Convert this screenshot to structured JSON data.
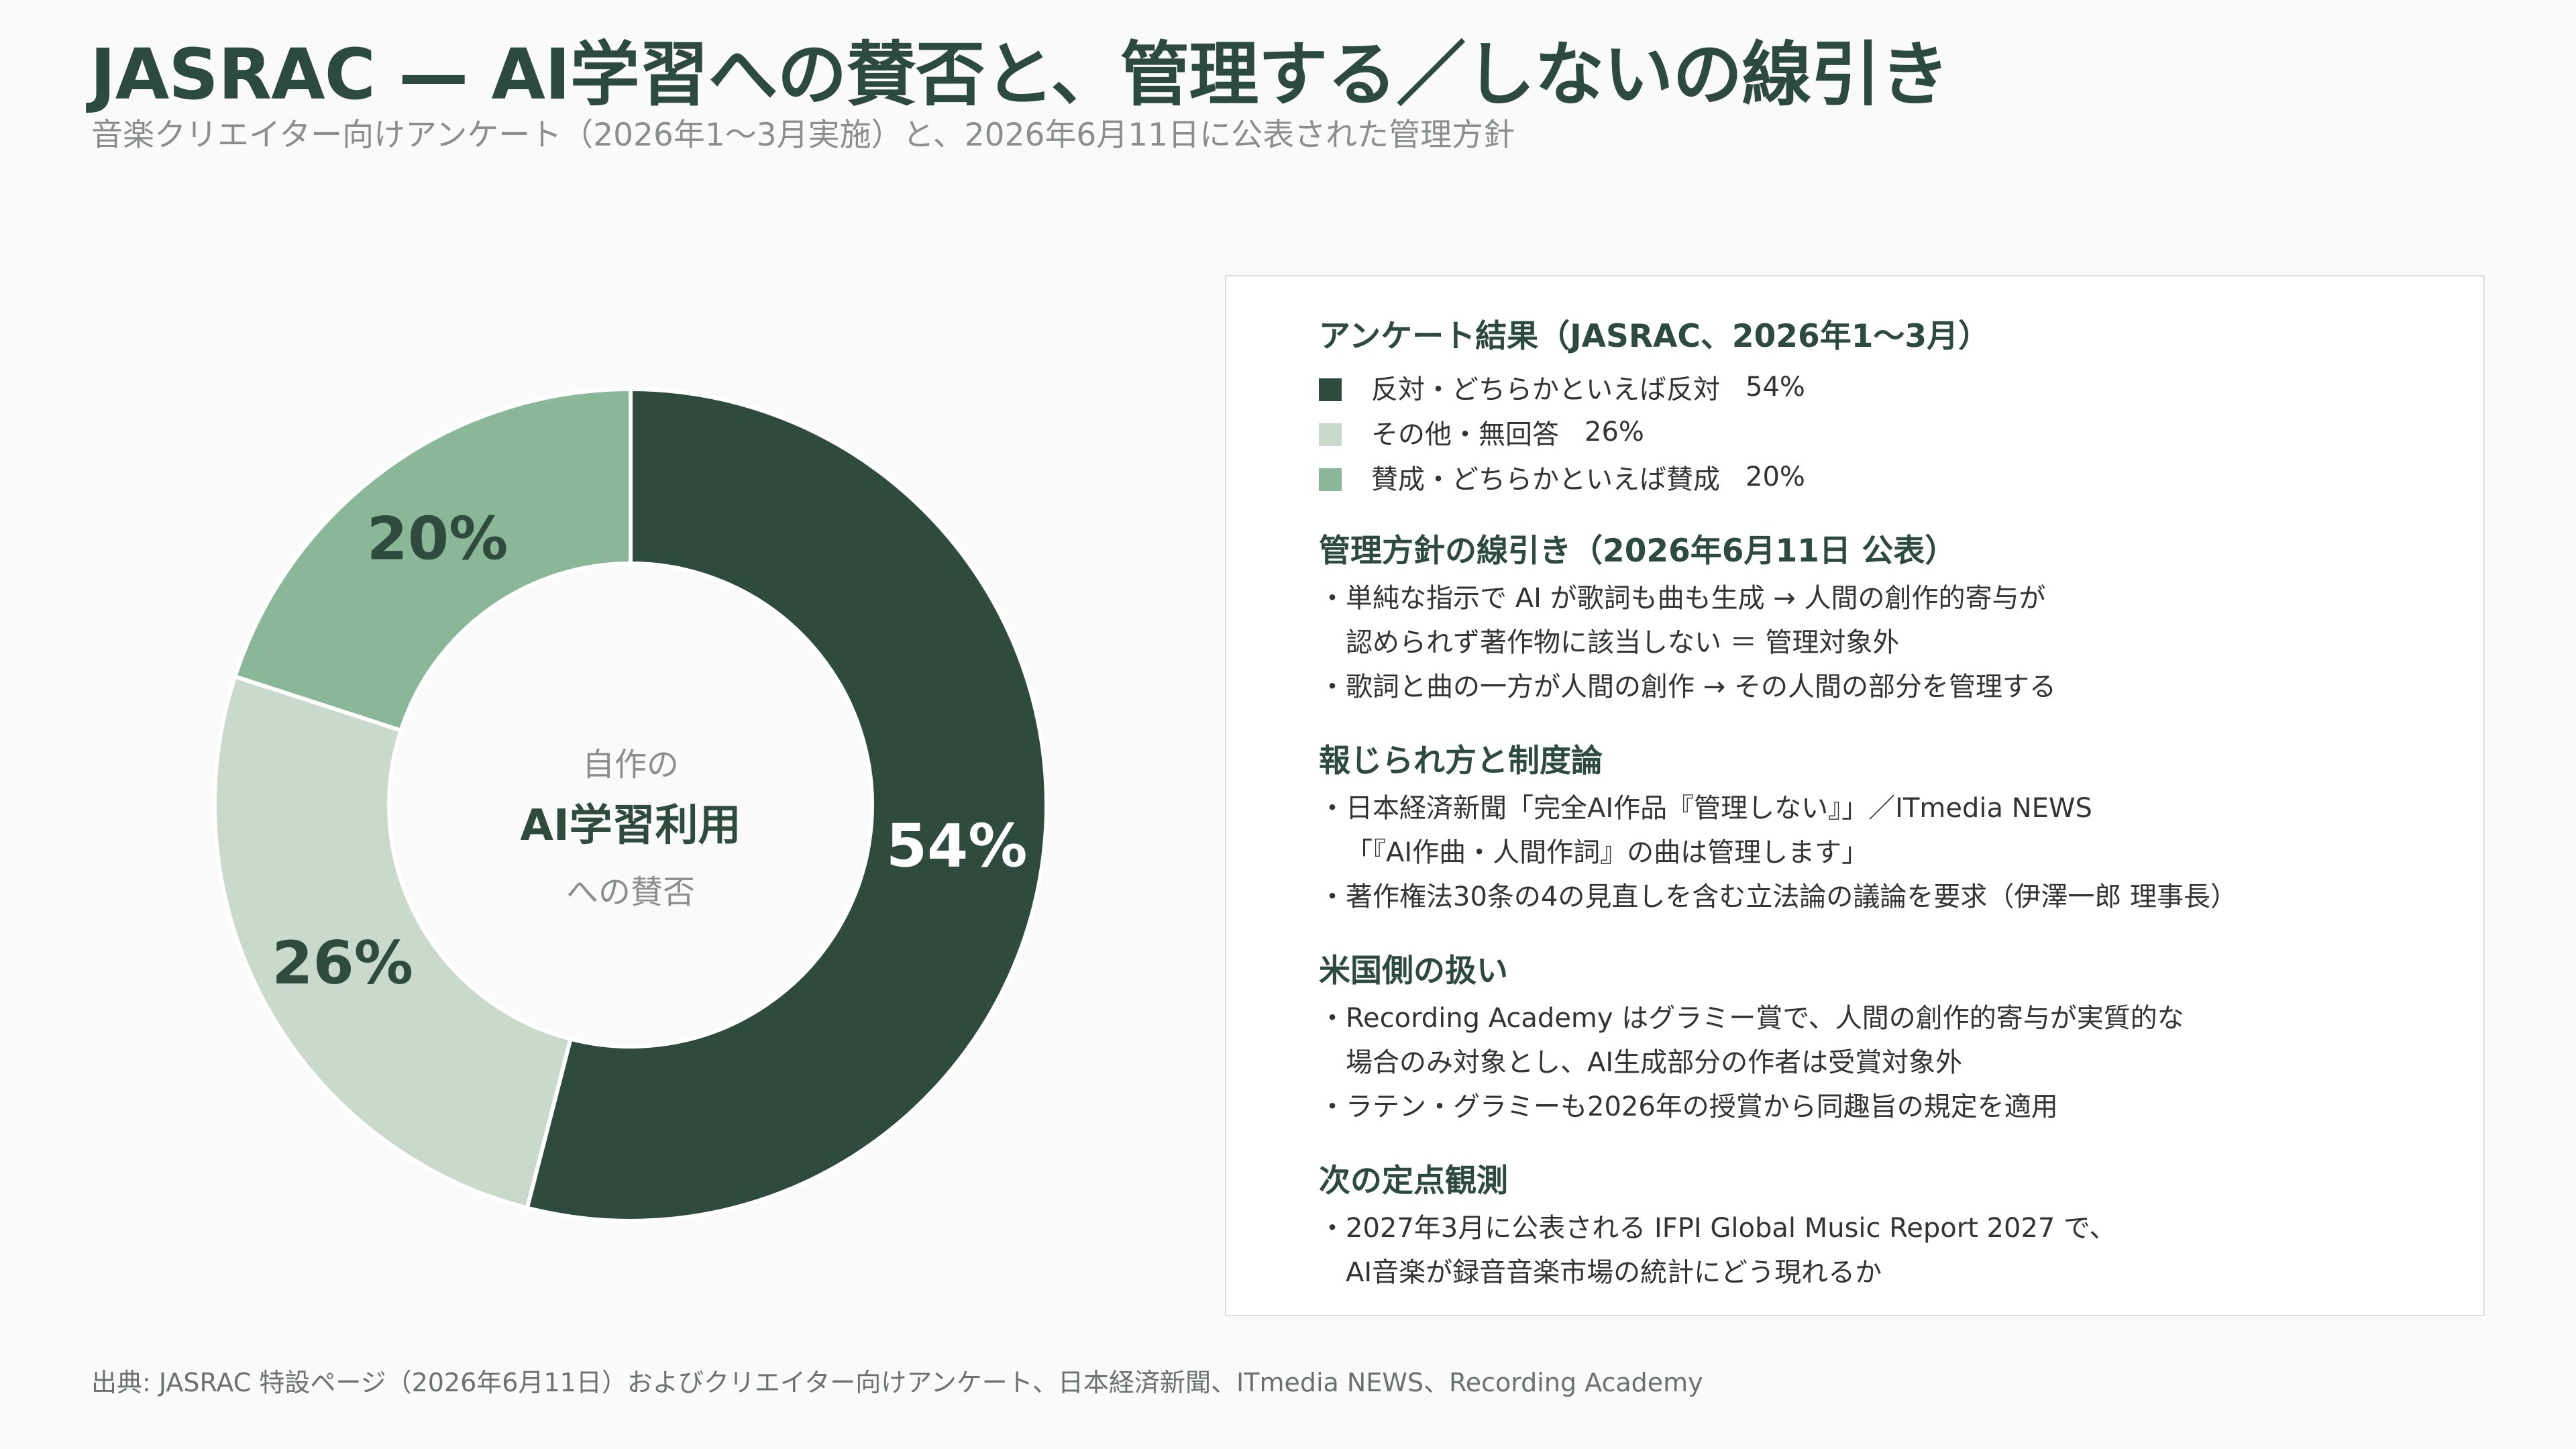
{
  "header": {
    "title": "JASRAC — AI学習への賛否と、管理する／しないの線引き",
    "subtitle": "音楽クリエイター向けアンケート（2026年1〜3月実施）と、2026年6月11日に公表された管理方針"
  },
  "chart_data": {
    "type": "pie",
    "donut": true,
    "center_label": [
      "自作の",
      "AI学習利用",
      "への賛否"
    ],
    "categories": [
      "反対・どちらかといえば反対",
      "その他・無回答",
      "賛成・どちらかといえば賛成"
    ],
    "values": [
      54,
      26,
      20
    ],
    "data_labels": [
      "54%",
      "26%",
      "20%"
    ],
    "colors": [
      "#2e4b3e",
      "#c9dacd",
      "#8ab797"
    ],
    "label_colors": [
      "#ffffff",
      "#2e4b3e",
      "#2e4b3e"
    ]
  },
  "panel": {
    "survey_title": "アンケート結果（JASRAC、2026年1〜3月）",
    "legend": [
      {
        "label": "反対・どちらかといえば反対",
        "value": "54%"
      },
      {
        "label": "その他・無回答",
        "value": "26%"
      },
      {
        "label": "賛成・どちらかといえば賛成",
        "value": "20%"
      }
    ],
    "sections": [
      {
        "title": "管理方針の線引き（2026年6月11日 公表）",
        "bullets": [
          [
            "・単純な指示で AI が歌詞も曲も生成 → 人間の創作的寄与が",
            "認められず著作物に該当しない ＝ 管理対象外"
          ],
          [
            "・歌詞と曲の一方が人間の創作 → その人間の部分を管理する"
          ]
        ]
      },
      {
        "title": "報じられ方と制度論",
        "bullets": [
          [
            "・日本経済新聞「完全AI作品『管理しない』」／ITmedia NEWS",
            "「『AI作曲・人間作詞』の曲は管理します」"
          ],
          [
            "・著作権法30条の4の見直しを含む立法論の議論を要求（伊澤一郎 理事長）"
          ]
        ]
      },
      {
        "title": "米国側の扱い",
        "bullets": [
          [
            "・Recording Academy はグラミー賞で、人間の創作的寄与が実質的な",
            "場合のみ対象とし、AI生成部分の作者は受賞対象外"
          ],
          [
            "・ラテン・グラミーも2026年の授賞から同趣旨の規定を適用"
          ]
        ]
      },
      {
        "title": "次の定点観測",
        "bullets": [
          [
            "・2027年3月に公表される IFPI Global Music Report 2027 で、",
            "AI音楽が録音音楽市場の統計にどう現れるか"
          ]
        ]
      }
    ]
  },
  "footer": {
    "source": "出典: JASRAC 特設ページ（2026年6月11日）およびクリエイター向けアンケート、日本経済新聞、ITmedia NEWS、Recording Academy"
  }
}
